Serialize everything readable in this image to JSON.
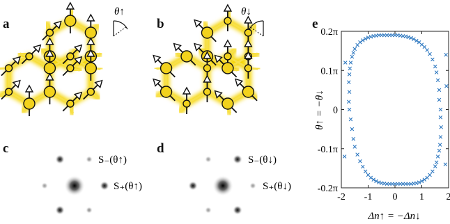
{
  "panels": {
    "a": "a",
    "b": "b",
    "c": "c",
    "d": "d",
    "e": "e"
  },
  "angle_labels": {
    "a": "θ↑",
    "b": "θ↓"
  },
  "peak_labels": {
    "c_minus": "S₋(θ↑)",
    "c_plus": "S₊(θ↑)",
    "d_minus": "S₋(θ↓)",
    "d_plus": "S₊(θ↓)"
  },
  "colors": {
    "bond_glow": "#f5d400",
    "spin_fill": "#f2d21c",
    "scatter": "#2e78c0"
  },
  "chart_data": {
    "type": "scatter",
    "marker": "x",
    "xlabel": "Δn↑ = −Δn↓",
    "ylabel": "θ↑ = −θ↓",
    "xlim": [
      -2,
      2
    ],
    "ylim": [
      -0.2,
      0.2
    ],
    "y_unit": "π",
    "xticks": [
      "-2",
      "-1",
      "0",
      "1",
      "2"
    ],
    "yticks": [
      "0.2π",
      "0.1π",
      "0",
      "-0.1π",
      "-0.2π"
    ],
    "series": [
      {
        "values_description_free": true,
        "x": [
          0.0,
          0.1,
          0.2,
          0.3,
          0.4,
          0.5,
          0.6,
          0.7,
          0.8,
          0.9,
          1.0,
          1.1,
          1.2,
          1.3,
          1.4,
          1.5,
          1.55,
          1.6,
          1.65,
          1.65,
          1.7,
          1.7,
          1.72,
          1.7,
          1.68,
          1.65,
          1.6,
          1.55,
          1.5,
          1.4,
          1.3,
          1.2,
          1.1,
          1.0,
          0.9,
          0.8,
          0.7,
          0.6,
          0.5,
          0.4,
          0.3,
          0.2,
          0.1,
          0.0,
          -0.1,
          -0.2,
          -0.3,
          -0.4,
          -0.5,
          -0.6,
          -0.7,
          -0.8,
          -0.9,
          -1.0,
          -1.1,
          -1.2,
          -1.3,
          -1.4,
          -1.5,
          -1.55,
          -1.6,
          -1.65,
          -1.7,
          -1.72,
          -1.7,
          -1.72,
          -1.7,
          -1.68,
          -1.65,
          -1.6,
          -1.55,
          -1.5,
          -1.4,
          -1.3,
          -1.2,
          -1.1,
          -1.0,
          -0.9,
          -0.8,
          -0.7,
          -0.6,
          -0.5,
          -0.4,
          -0.3,
          -0.2,
          -0.1,
          1.9,
          1.88,
          1.92,
          -1.85,
          -1.88
        ],
        "y": [
          0.19,
          0.19,
          0.189,
          0.188,
          0.187,
          0.185,
          0.183,
          0.18,
          0.176,
          0.172,
          0.166,
          0.16,
          0.152,
          0.142,
          0.128,
          0.11,
          0.095,
          0.075,
          0.05,
          0.025,
          0.0,
          -0.02,
          -0.045,
          -0.07,
          -0.09,
          -0.105,
          -0.12,
          -0.135,
          -0.145,
          -0.158,
          -0.167,
          -0.174,
          -0.179,
          -0.183,
          -0.186,
          -0.188,
          -0.189,
          -0.19,
          -0.19,
          -0.19,
          -0.19,
          -0.19,
          -0.19,
          -0.19,
          -0.19,
          -0.19,
          -0.19,
          -0.189,
          -0.188,
          -0.186,
          -0.183,
          -0.179,
          -0.174,
          -0.167,
          -0.158,
          -0.146,
          -0.132,
          -0.115,
          -0.095,
          -0.075,
          -0.05,
          -0.025,
          0.0,
          0.02,
          0.045,
          0.07,
          0.09,
          0.105,
          0.12,
          0.135,
          0.145,
          0.155,
          0.165,
          0.172,
          0.177,
          0.181,
          0.184,
          0.186,
          0.188,
          0.189,
          0.19,
          0.19,
          0.19,
          0.19,
          0.19,
          0.19,
          0.14,
          -0.14,
          0.06,
          0.12,
          -0.12
        ]
      }
    ]
  }
}
